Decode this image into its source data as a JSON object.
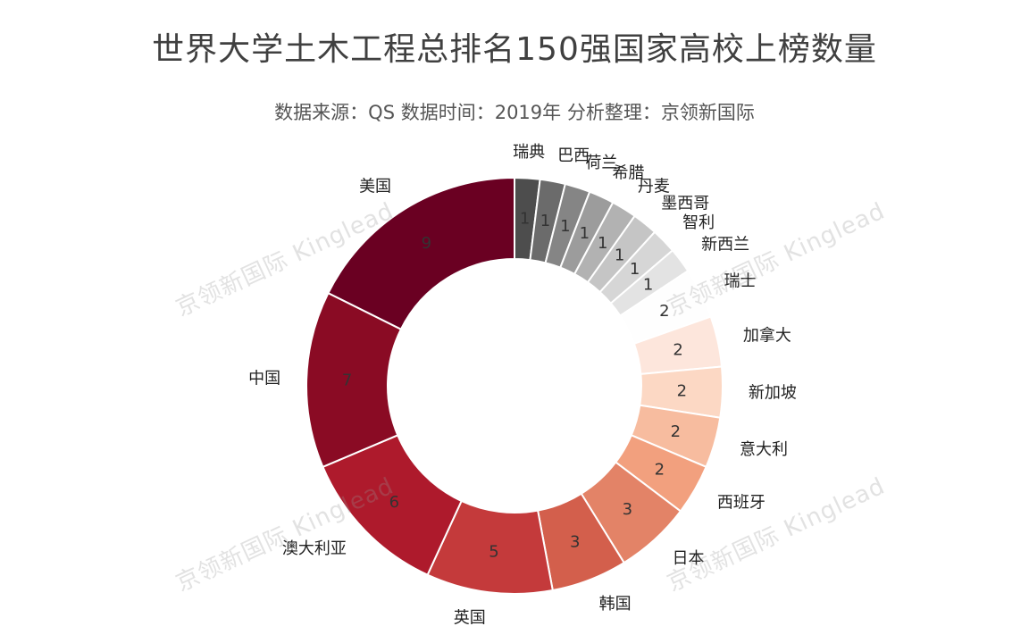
{
  "title": "世界大学土木工程总排名150强国家高校上榜数量",
  "subtitle": "数据来源：QS 数据时间：2019年 分析整理：京领新国际",
  "watermark": "京领新国际 Kinglead",
  "chart_data": {
    "type": "pie",
    "donut": true,
    "direction": "clockwise",
    "start": "top",
    "categories": [
      "瑞典",
      "巴西",
      "荷兰",
      "希腊",
      "丹麦",
      "墨西哥",
      "智利",
      "新西兰",
      "瑞士",
      "加拿大",
      "新加坡",
      "意大利",
      "西班牙",
      "日本",
      "韩国",
      "英国",
      "澳大利亚",
      "中国",
      "美国"
    ],
    "values": [
      1,
      1,
      1,
      1,
      1,
      1,
      1,
      1,
      2,
      2,
      2,
      2,
      2,
      3,
      3,
      5,
      6,
      7,
      9
    ],
    "colors": [
      "#4d4d4d",
      "#6b6b6b",
      "#858585",
      "#9c9c9c",
      "#b2b2b2",
      "#c5c5c5",
      "#d6d6d6",
      "#e3e3e3",
      "#fefefe",
      "#fde6dc",
      "#fcd8c4",
      "#f7bc9f",
      "#f2a07e",
      "#e38367",
      "#d35f4c",
      "#c43a3b",
      "#ae1a2c",
      "#8a0b24",
      "#6a0022"
    ]
  }
}
